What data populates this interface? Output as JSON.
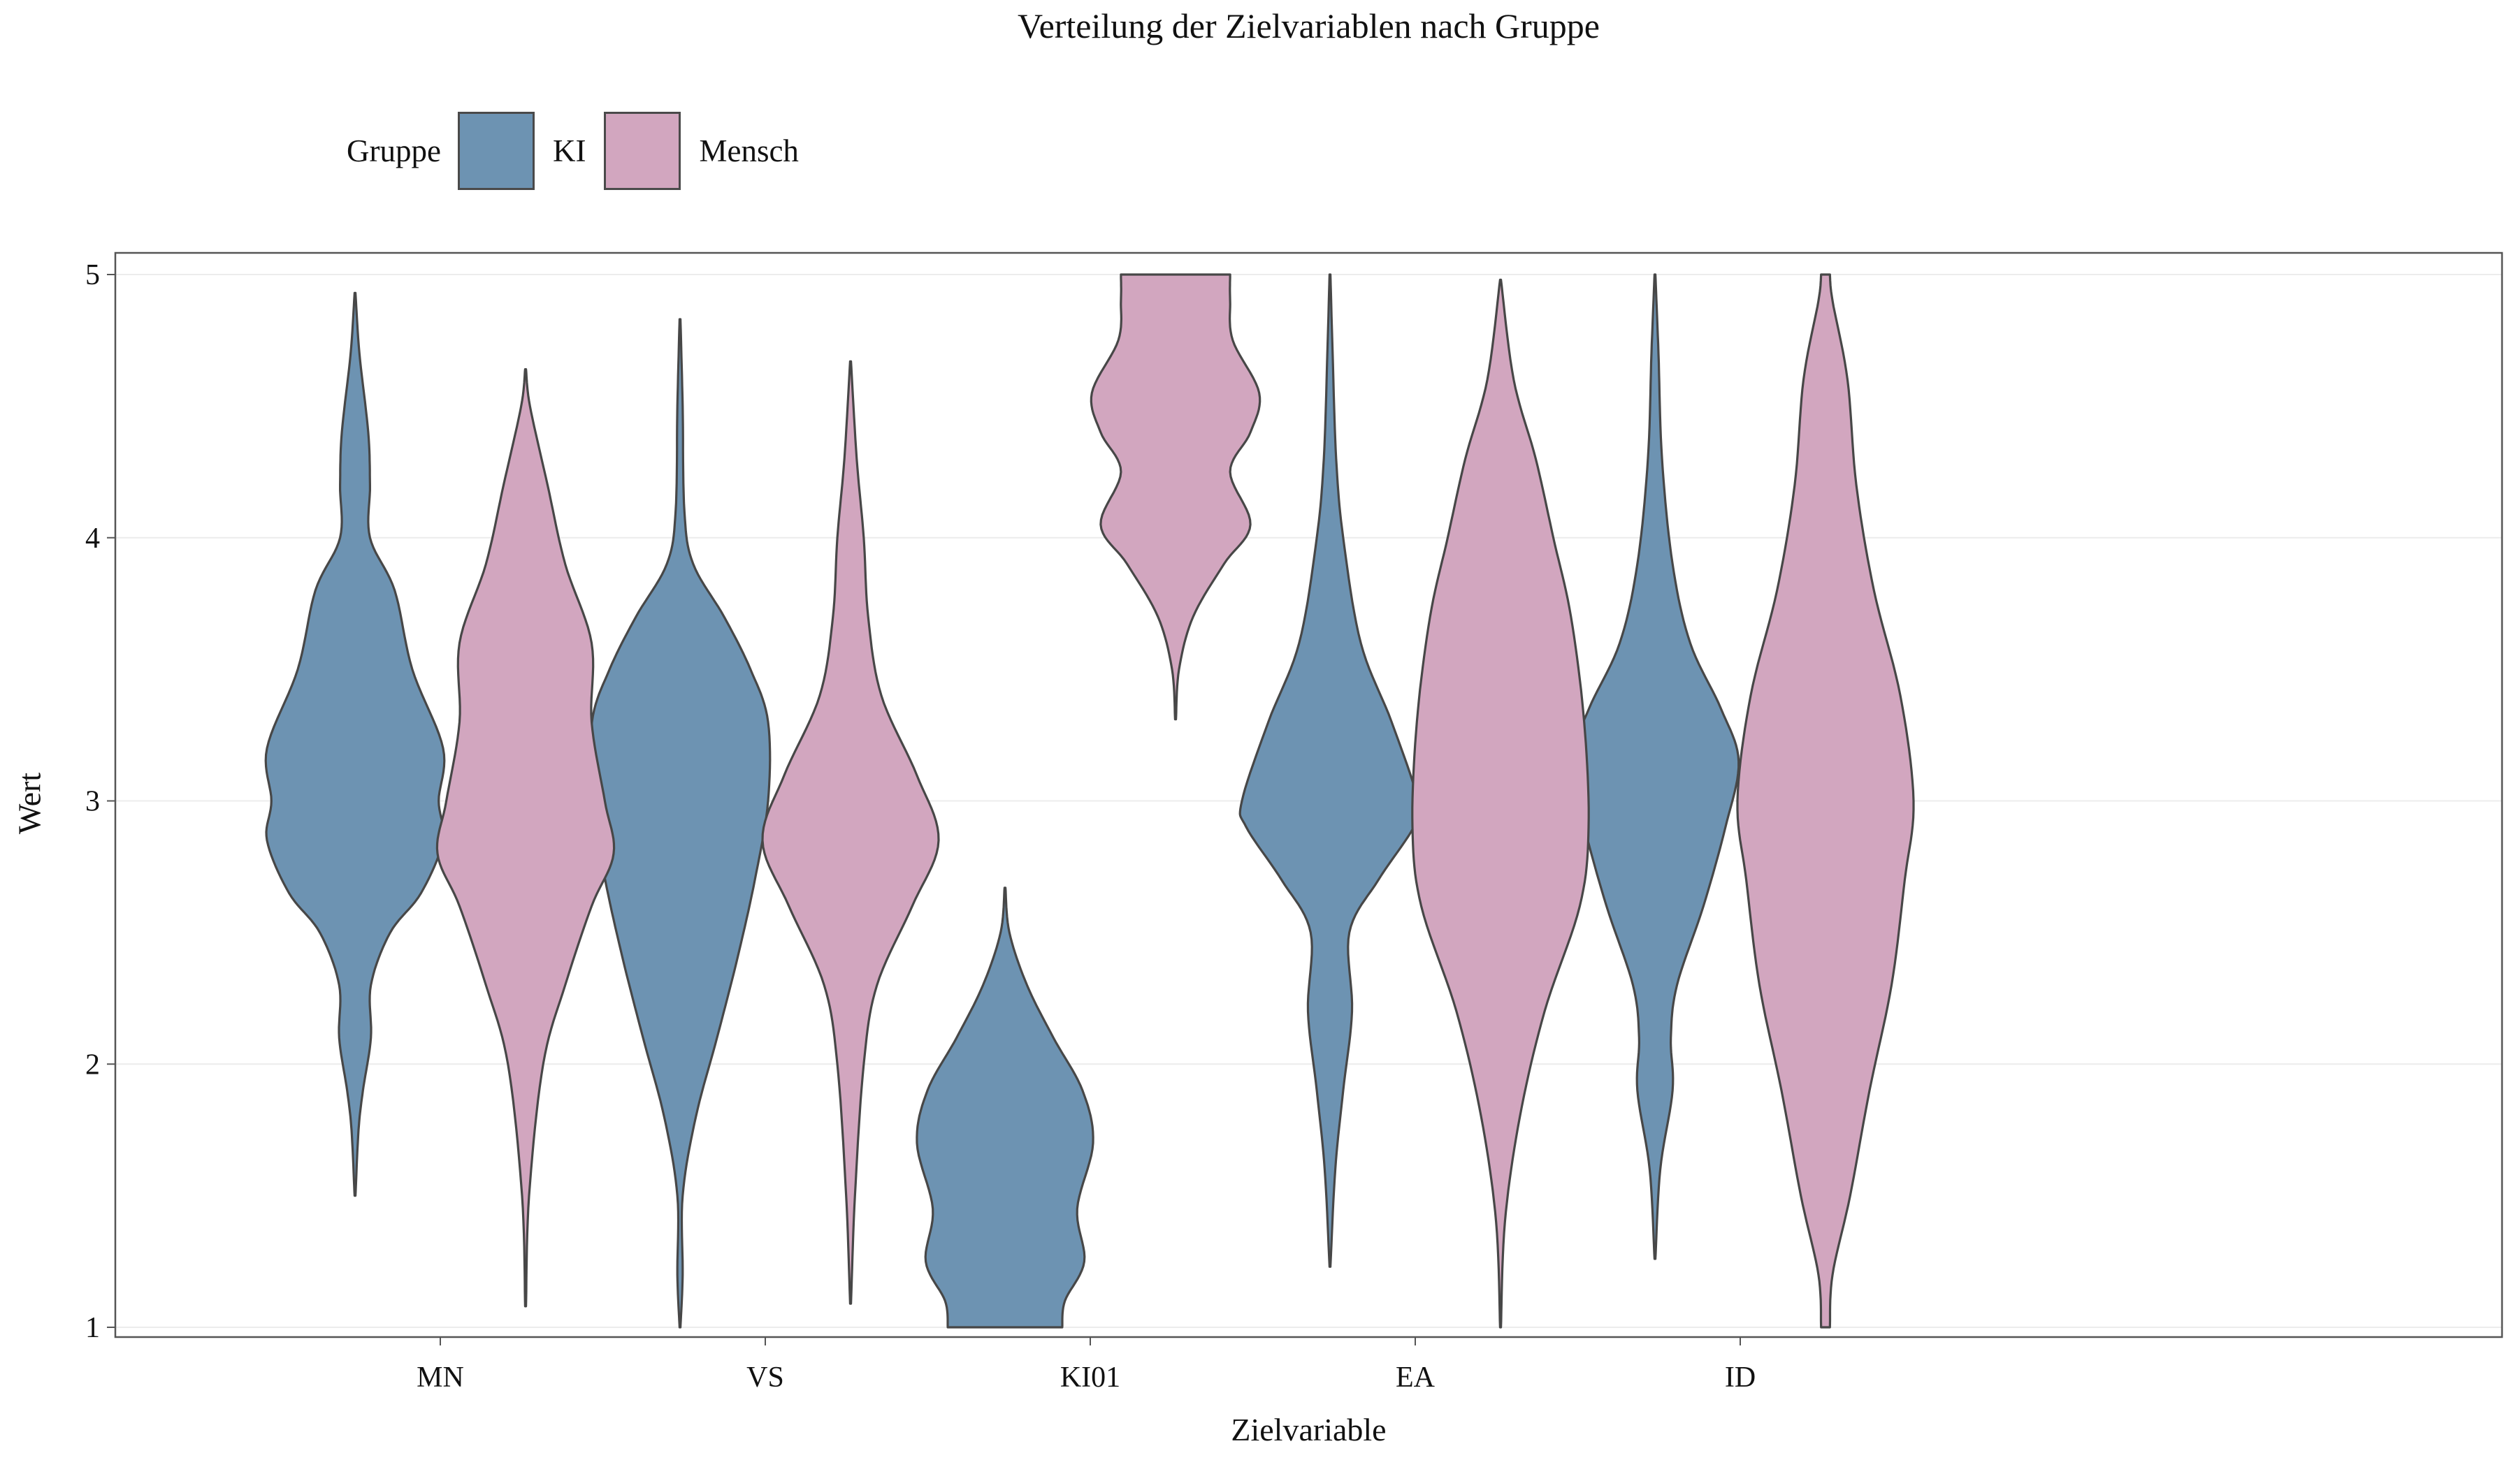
{
  "chart_data": {
    "type": "violin",
    "title": "Verteilung der Zielvariablen nach Gruppe",
    "xlabel": "Zielvariable",
    "ylabel": "Wert",
    "categories": [
      "MN",
      "VS",
      "KI01",
      "EA",
      "ID"
    ],
    "yticks": [
      1,
      2,
      3,
      4,
      5
    ],
    "ylim": [
      1,
      5
    ],
    "grid": "horizontal",
    "legend": {
      "title": "Gruppe",
      "placement": "top-left",
      "entries": [
        {
          "name": "KI",
          "color": "#6d93b2"
        },
        {
          "name": "Mensch",
          "color": "#d2a6bf"
        }
      ]
    },
    "series": [
      {
        "name": "KI",
        "color": "#6d93b2",
        "violins": [
          {
            "category": "MN",
            "min": 1.5,
            "max": 4.93,
            "profile": [
              [
                1.5,
                0.005
              ],
              [
                1.75,
                0.04
              ],
              [
                1.9,
                0.09
              ],
              [
                2.1,
                0.18
              ],
              [
                2.3,
                0.18
              ],
              [
                2.5,
                0.4
              ],
              [
                2.65,
                0.75
              ],
              [
                2.85,
                1.0
              ],
              [
                3.0,
                0.95
              ],
              [
                3.2,
                1.0
              ],
              [
                3.5,
                0.65
              ],
              [
                3.8,
                0.45
              ],
              [
                4.0,
                0.17
              ],
              [
                4.2,
                0.17
              ],
              [
                4.4,
                0.15
              ],
              [
                4.7,
                0.05
              ],
              [
                4.93,
                0.005
              ]
            ]
          },
          {
            "category": "VS",
            "min": 1.0,
            "max": 4.83,
            "profile": [
              [
                1.0,
                0.005
              ],
              [
                1.2,
                0.03
              ],
              [
                1.5,
                0.03
              ],
              [
                1.8,
                0.18
              ],
              [
                2.1,
                0.42
              ],
              [
                2.4,
                0.65
              ],
              [
                2.7,
                0.85
              ],
              [
                3.0,
                1.0
              ],
              [
                3.3,
                1.0
              ],
              [
                3.5,
                0.8
              ],
              [
                3.7,
                0.5
              ],
              [
                3.9,
                0.15
              ],
              [
                4.1,
                0.05
              ],
              [
                4.5,
                0.03
              ],
              [
                4.83,
                0.005
              ]
            ]
          },
          {
            "category": "KI01",
            "min": 1.0,
            "max": 2.67,
            "profile": [
              [
                1.0,
                0.65
              ],
              [
                1.1,
                0.68
              ],
              [
                1.25,
                0.9
              ],
              [
                1.45,
                0.82
              ],
              [
                1.7,
                1.0
              ],
              [
                1.9,
                0.88
              ],
              [
                2.1,
                0.55
              ],
              [
                2.3,
                0.25
              ],
              [
                2.5,
                0.05
              ],
              [
                2.67,
                0.005
              ]
            ]
          },
          {
            "category": "EA",
            "min": 1.23,
            "max": 5.0,
            "profile": [
              [
                1.23,
                0.005
              ],
              [
                1.6,
                0.06
              ],
              [
                1.9,
                0.15
              ],
              [
                2.2,
                0.25
              ],
              [
                2.5,
                0.22
              ],
              [
                2.7,
                0.55
              ],
              [
                2.9,
                0.95
              ],
              [
                3.0,
                1.0
              ],
              [
                3.3,
                0.7
              ],
              [
                3.6,
                0.35
              ],
              [
                4.0,
                0.15
              ],
              [
                4.3,
                0.07
              ],
              [
                4.7,
                0.03
              ],
              [
                5.0,
                0.005
              ]
            ]
          },
          {
            "category": "ID",
            "min": 1.26,
            "max": 5.0,
            "profile": [
              [
                1.26,
                0.005
              ],
              [
                1.6,
                0.06
              ],
              [
                1.9,
                0.2
              ],
              [
                2.1,
                0.18
              ],
              [
                2.3,
                0.25
              ],
              [
                2.6,
                0.55
              ],
              [
                2.9,
                0.8
              ],
              [
                3.15,
                0.95
              ],
              [
                3.35,
                0.75
              ],
              [
                3.6,
                0.4
              ],
              [
                3.9,
                0.2
              ],
              [
                4.3,
                0.08
              ],
              [
                4.7,
                0.04
              ],
              [
                5.0,
                0.005
              ]
            ]
          }
        ]
      },
      {
        "name": "Mensch",
        "color": "#d2a6bf",
        "violins": [
          {
            "category": "MN",
            "min": 1.08,
            "max": 4.64,
            "profile": [
              [
                1.08,
                0.005
              ],
              [
                1.5,
                0.04
              ],
              [
                2.0,
                0.2
              ],
              [
                2.3,
                0.45
              ],
              [
                2.6,
                0.75
              ],
              [
                2.8,
                1.0
              ],
              [
                3.0,
                0.9
              ],
              [
                3.3,
                0.75
              ],
              [
                3.6,
                0.75
              ],
              [
                3.9,
                0.45
              ],
              [
                4.2,
                0.25
              ],
              [
                4.5,
                0.05
              ],
              [
                4.64,
                0.005
              ]
            ]
          },
          {
            "category": "VS",
            "min": 1.09,
            "max": 4.67,
            "profile": [
              [
                1.09,
                0.005
              ],
              [
                1.5,
                0.05
              ],
              [
                2.0,
                0.15
              ],
              [
                2.3,
                0.3
              ],
              [
                2.6,
                0.7
              ],
              [
                2.85,
                1.0
              ],
              [
                3.1,
                0.75
              ],
              [
                3.4,
                0.35
              ],
              [
                3.7,
                0.2
              ],
              [
                4.0,
                0.15
              ],
              [
                4.3,
                0.07
              ],
              [
                4.67,
                0.005
              ]
            ]
          },
          {
            "category": "KI01",
            "min": 3.31,
            "max": 5.0,
            "profile": [
              [
                3.31,
                0.005
              ],
              [
                3.5,
                0.04
              ],
              [
                3.7,
                0.2
              ],
              [
                3.9,
                0.55
              ],
              [
                4.05,
                0.85
              ],
              [
                4.25,
                0.62
              ],
              [
                4.4,
                0.85
              ],
              [
                4.55,
                0.95
              ],
              [
                4.75,
                0.65
              ],
              [
                4.9,
                0.62
              ],
              [
                5.0,
                0.62
              ]
            ]
          },
          {
            "category": "EA",
            "min": 1.0,
            "max": 4.98,
            "profile": [
              [
                1.0,
                0.005
              ],
              [
                1.4,
                0.05
              ],
              [
                1.8,
                0.22
              ],
              [
                2.2,
                0.5
              ],
              [
                2.6,
                0.9
              ],
              [
                2.9,
                1.0
              ],
              [
                3.3,
                0.95
              ],
              [
                3.7,
                0.8
              ],
              [
                4.0,
                0.6
              ],
              [
                4.3,
                0.4
              ],
              [
                4.6,
                0.15
              ],
              [
                4.98,
                0.005
              ]
            ]
          },
          {
            "category": "ID",
            "min": 1.0,
            "max": 5.0,
            "profile": [
              [
                1.0,
                0.05
              ],
              [
                1.2,
                0.08
              ],
              [
                1.5,
                0.28
              ],
              [
                1.9,
                0.5
              ],
              [
                2.3,
                0.75
              ],
              [
                2.7,
                0.9
              ],
              [
                3.0,
                1.0
              ],
              [
                3.4,
                0.85
              ],
              [
                3.8,
                0.55
              ],
              [
                4.2,
                0.35
              ],
              [
                4.6,
                0.25
              ],
              [
                4.9,
                0.08
              ],
              [
                5.0,
                0.05
              ]
            ]
          }
        ]
      }
    ]
  }
}
